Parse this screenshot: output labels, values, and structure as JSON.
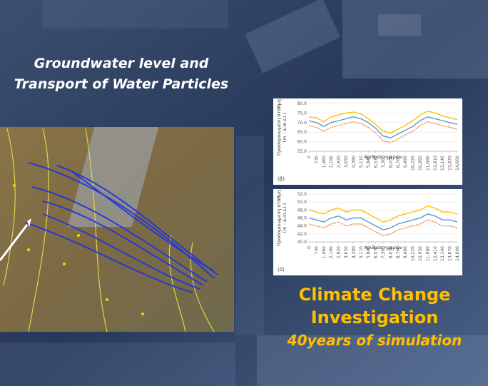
{
  "title_lines": [
    "Groundwater level and",
    "Transport of Water Particles"
  ],
  "caption_lines": [
    "Climate Change",
    "Investigation"
  ],
  "caption_sub": "40years of simulation",
  "chart_data": [
    {
      "type": "line",
      "panel_label": "(β)",
      "xlabel": "Αριθμός ημερών",
      "ylabel": [
        "Προσομοιωμένη στάθμη",
        "(m - a.m.s.l.)"
      ],
      "x": [
        0,
        730,
        1460,
        2190,
        2920,
        3650,
        4380,
        5110,
        5840,
        6570,
        7300,
        8030,
        8760,
        9490,
        10220,
        10950,
        11680,
        12410,
        13140,
        13870,
        14600
      ],
      "xlim": [
        0,
        14600
      ],
      "xticks": [
        0,
        730,
        {
          "value": 1460,
          "label": "1,460"
        },
        {
          "value": 2190,
          "label": "2,190"
        },
        {
          "value": 2920,
          "label": "2,920"
        },
        {
          "value": 3650,
          "label": "3,650"
        },
        {
          "value": 4380,
          "label": "4,380"
        },
        {
          "value": 5110,
          "label": "5,110"
        },
        {
          "value": 5840,
          "label": "5,840"
        },
        {
          "value": 6570,
          "label": "6,570"
        },
        {
          "value": 7300,
          "label": "7,300"
        },
        {
          "value": 8030,
          "label": "8,030"
        },
        {
          "value": 8760,
          "label": "8,760"
        },
        {
          "value": 9490,
          "label": "9,490"
        },
        {
          "value": 10220,
          "label": "10,220"
        },
        {
          "value": 10950,
          "label": "10,950"
        },
        {
          "value": 11680,
          "label": "11,680"
        },
        {
          "value": 12410,
          "label": "12,410"
        },
        {
          "value": 13140,
          "label": "13,140"
        },
        {
          "value": 13870,
          "label": "13,870"
        },
        {
          "value": 14600,
          "label": "14,600"
        }
      ],
      "ylim": [
        55,
        80
      ],
      "yticks": [
        {
          "value": 55,
          "label": "55.0"
        },
        {
          "value": 60,
          "label": "60.0"
        },
        {
          "value": 65,
          "label": "65.0"
        },
        {
          "value": 70,
          "label": "70.0"
        },
        {
          "value": 75,
          "label": "75.0"
        },
        {
          "value": 80,
          "label": "80.0"
        }
      ],
      "series": [
        {
          "color": "#ffc000",
          "dashed": false,
          "values": [
            73,
            72.5,
            70.5,
            73,
            74,
            75,
            75.5,
            74.5,
            72,
            69,
            65.5,
            64.5,
            66.5,
            68.5,
            71,
            74,
            76,
            75,
            73.5,
            72.5,
            71.5
          ]
        },
        {
          "color": "#5b9bd5",
          "dashed": false,
          "values": [
            71,
            70,
            68,
            70,
            71,
            72,
            73,
            72,
            70,
            67,
            63,
            62,
            64,
            66,
            68,
            71,
            73,
            72,
            71,
            70,
            69
          ]
        },
        {
          "color": "#ed7d31",
          "dashed": true,
          "values": [
            68.5,
            67.5,
            65.5,
            67.5,
            68.5,
            69.5,
            70.5,
            69.5,
            67.5,
            64.5,
            60.5,
            59.5,
            61.5,
            63.5,
            65.5,
            68.5,
            70.5,
            69.5,
            68.5,
            67.5,
            66.5
          ]
        }
      ]
    },
    {
      "type": "line",
      "panel_label": "(δ)",
      "xlabel": "Αριθμός ημερών",
      "ylabel": [
        "Προσομοιωμένη στάθμη",
        "(m - a.m.s.l.)"
      ],
      "x": [
        0,
        730,
        1460,
        2190,
        2920,
        3650,
        4380,
        5110,
        5840,
        6570,
        7300,
        8030,
        8760,
        9490,
        10220,
        10950,
        11680,
        12410,
        13140,
        13870,
        14600
      ],
      "xlim": [
        0,
        14600
      ],
      "xticks": [
        0,
        730,
        {
          "value": 1460,
          "label": "1,460"
        },
        {
          "value": 2190,
          "label": "2,190"
        },
        {
          "value": 2920,
          "label": "2,920"
        },
        {
          "value": 3650,
          "label": "3,650"
        },
        {
          "value": 4380,
          "label": "4,380"
        },
        {
          "value": 5110,
          "label": "5,110"
        },
        {
          "value": 5840,
          "label": "5,840"
        },
        {
          "value": 6570,
          "label": "6,570"
        },
        {
          "value": 7300,
          "label": "7,300"
        },
        {
          "value": 8030,
          "label": "8,030"
        },
        {
          "value": 8760,
          "label": "8,760"
        },
        {
          "value": 9490,
          "label": "9,490"
        },
        {
          "value": 10220,
          "label": "10,220"
        },
        {
          "value": 10950,
          "label": "10,950"
        },
        {
          "value": 11680,
          "label": "11,680"
        },
        {
          "value": 12410,
          "label": "12,410"
        },
        {
          "value": 13140,
          "label": "13,140"
        },
        {
          "value": 13870,
          "label": "13,870"
        },
        {
          "value": 14600,
          "label": "14,600"
        }
      ],
      "ylim": [
        40,
        52
      ],
      "yticks": [
        {
          "value": 40,
          "label": "40.0"
        },
        {
          "value": 42,
          "label": "42.0"
        },
        {
          "value": 44,
          "label": "44.0"
        },
        {
          "value": 46,
          "label": "46.0"
        },
        {
          "value": 48,
          "label": "48.0"
        },
        {
          "value": 50,
          "label": "50.0"
        },
        {
          "value": 52,
          "label": "52.0"
        }
      ],
      "series": [
        {
          "color": "#ffc000",
          "dashed": false,
          "values": [
            48,
            47.5,
            47,
            48,
            48.5,
            47.5,
            48,
            48,
            47,
            46,
            45,
            45.5,
            46.5,
            47,
            47.5,
            48,
            49,
            48.5,
            47.5,
            47.5,
            47
          ]
        },
        {
          "color": "#5b9bd5",
          "dashed": false,
          "values": [
            46,
            45.5,
            45,
            46,
            46.5,
            45.5,
            46,
            46,
            45,
            44,
            43,
            43.5,
            44.5,
            45,
            45.5,
            46,
            47,
            46.5,
            45.5,
            45.5,
            45
          ]
        },
        {
          "color": "#ed7d31",
          "dashed": true,
          "values": [
            44.5,
            44,
            43.5,
            44.5,
            45,
            44,
            44.5,
            44.5,
            43.5,
            42.5,
            41.5,
            42,
            43,
            43.5,
            44,
            44.5,
            45.5,
            45,
            44,
            44,
            43.5
          ]
        }
      ]
    }
  ]
}
